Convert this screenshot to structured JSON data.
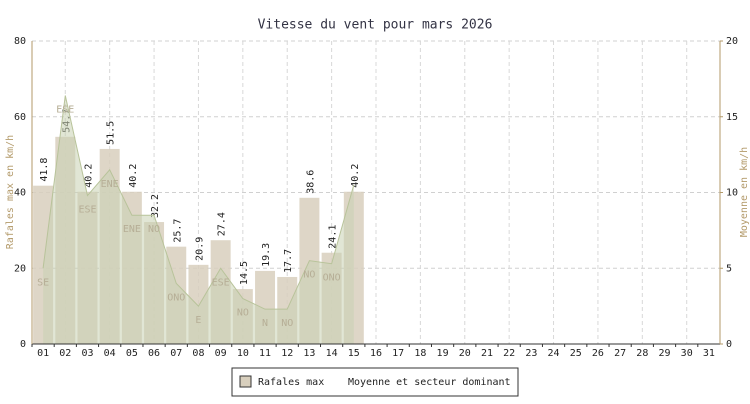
{
  "chart_data": {
    "type": "bar",
    "title": "Vitesse du vent pour mars 2026",
    "y_label": "Rafales max en km/h",
    "y2_label": "Moyenne en km/h",
    "categories": [
      "01",
      "02",
      "03",
      "04",
      "05",
      "06",
      "07",
      "08",
      "09",
      "10",
      "11",
      "12",
      "13",
      "14",
      "15",
      "16",
      "17",
      "18",
      "19",
      "20",
      "21",
      "22",
      "23",
      "24",
      "25",
      "26",
      "27",
      "28",
      "29",
      "30",
      "31"
    ],
    "series": [
      {
        "name": "Rafales max",
        "color": "#d8cfbd",
        "values": [
          41.8,
          54.7,
          40.2,
          51.5,
          40.2,
          32.2,
          25.7,
          20.9,
          27.4,
          14.5,
          19.3,
          17.7,
          38.6,
          24.1,
          40.2,
          null,
          null,
          null,
          null,
          null,
          null,
          null,
          null,
          null,
          null,
          null,
          null,
          null,
          null,
          null,
          null
        ]
      },
      {
        "name": "Moyenne et secteur dominant",
        "color": "#c9d1b2",
        "axis": "y2",
        "values": [
          5.0,
          16.4,
          9.8,
          11.5,
          8.5,
          8.5,
          4.0,
          2.5,
          5.0,
          3.0,
          2.3,
          2.3,
          5.5,
          5.3,
          10.5,
          null,
          null,
          null,
          null,
          null,
          null,
          null,
          null,
          null,
          null,
          null,
          null,
          null,
          null,
          null,
          null
        ],
        "sectors": [
          "SE",
          "ESE",
          "ESE",
          "ENE",
          "ENE",
          "NO",
          "ONO",
          "E",
          "ESE",
          "NO",
          "N",
          "NO",
          "NO",
          "ONO",
          null,
          null,
          null,
          null,
          null,
          null,
          null,
          null,
          null,
          null,
          null,
          null,
          null,
          null,
          null,
          null,
          null
        ]
      }
    ],
    "ylim": [
      0,
      80
    ],
    "yticks": [
      0,
      20,
      40,
      60,
      80
    ],
    "y2lim": [
      0,
      20
    ],
    "y2ticks": [
      0,
      5,
      10,
      15,
      20
    ],
    "grid": true
  }
}
